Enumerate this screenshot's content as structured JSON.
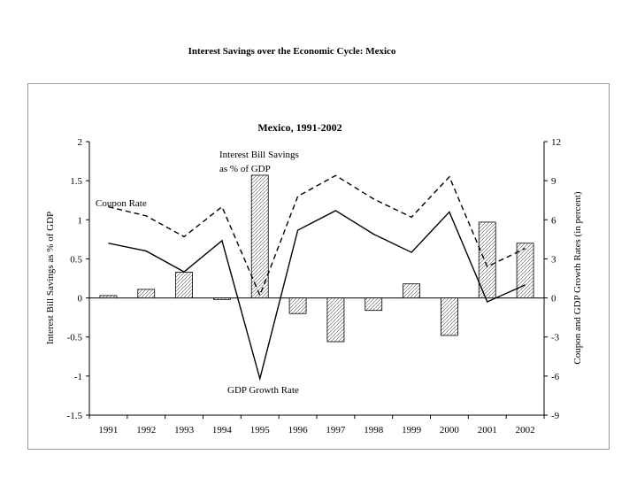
{
  "page_title": "Interest Savings over the Economic Cycle: Mexico",
  "chart_data": {
    "type": "bar",
    "title": "Mexico, 1991-2002",
    "categories": [
      "1991",
      "1992",
      "1993",
      "1994",
      "1995",
      "1996",
      "1997",
      "1998",
      "1999",
      "2000",
      "2001",
      "2002"
    ],
    "ylabel": "Interest Bill Savings as % of GDP",
    "y2label": "Coupon and GDP Growth Rates (in percent)",
    "ylim": [
      -1.5,
      2
    ],
    "y2lim": [
      -9,
      12
    ],
    "yticks": [
      "2",
      "1.5",
      "1",
      "0.5",
      "0",
      "-0.5",
      "-1",
      "-1.5"
    ],
    "y2ticks": [
      "12",
      "9",
      "6",
      "3",
      "0",
      "-3",
      "-6",
      "-9"
    ],
    "grid": false,
    "series": [
      {
        "name": "Interest Bill Savings as % of GDP",
        "kind": "bar",
        "axis": "left",
        "fill": "hatched",
        "values": [
          0.03,
          0.11,
          0.33,
          -0.02,
          1.57,
          -0.2,
          -0.56,
          -0.16,
          0.18,
          -0.48,
          0.97,
          0.7
        ]
      },
      {
        "name": "Coupon Rate",
        "kind": "line",
        "axis": "right",
        "style": "dashed",
        "values": [
          7.0,
          6.3,
          4.7,
          7.0,
          0.2,
          7.8,
          9.4,
          7.6,
          6.2,
          9.3,
          2.4,
          3.8
        ]
      },
      {
        "name": "GDP Growth Rate",
        "kind": "line",
        "axis": "right",
        "style": "solid",
        "values": [
          4.2,
          3.6,
          2.0,
          4.4,
          -6.2,
          5.2,
          6.7,
          4.9,
          3.5,
          6.6,
          -0.3,
          1.0
        ]
      }
    ],
    "annotations": {
      "bars_label_line1": "Interest Bill Savings",
      "bars_label_line2": "as % of GDP",
      "coupon_label": "Coupon Rate",
      "gdp_label": "GDP Growth Rate"
    }
  }
}
